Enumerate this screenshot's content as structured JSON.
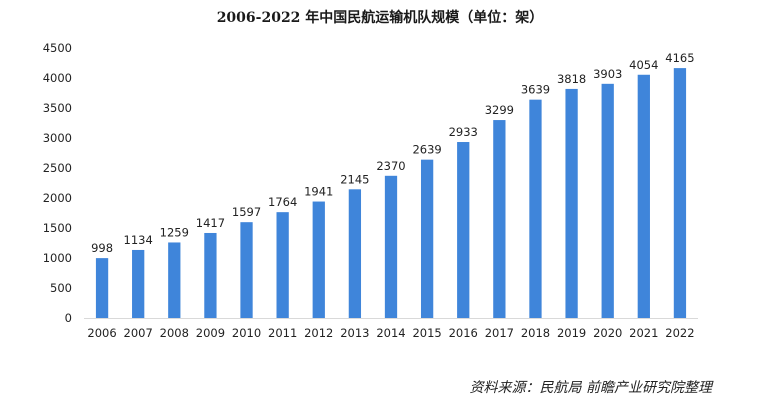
{
  "chart_data": {
    "type": "bar",
    "title": "2006-2022 年中国民航运输机队规模（单位：架）",
    "xlabel": "",
    "ylabel": "",
    "categories": [
      "2006",
      "2007",
      "2008",
      "2009",
      "2010",
      "2011",
      "2012",
      "2013",
      "2014",
      "2015",
      "2016",
      "2017",
      "2018",
      "2019",
      "2020",
      "2021",
      "2022"
    ],
    "values": [
      998,
      1134,
      1259,
      1417,
      1597,
      1764,
      1941,
      2145,
      2370,
      2639,
      2933,
      3299,
      3639,
      3818,
      3903,
      4054,
      4165
    ],
    "ylim": [
      0,
      4500
    ],
    "yticks": [
      0,
      500,
      1000,
      1500,
      2000,
      2500,
      3000,
      3500,
      4000,
      4500
    ],
    "grid": false,
    "legend": "none",
    "bar_color": "#3F85DA",
    "source": "资料来源：民航局 前瞻产业研究院整理"
  }
}
